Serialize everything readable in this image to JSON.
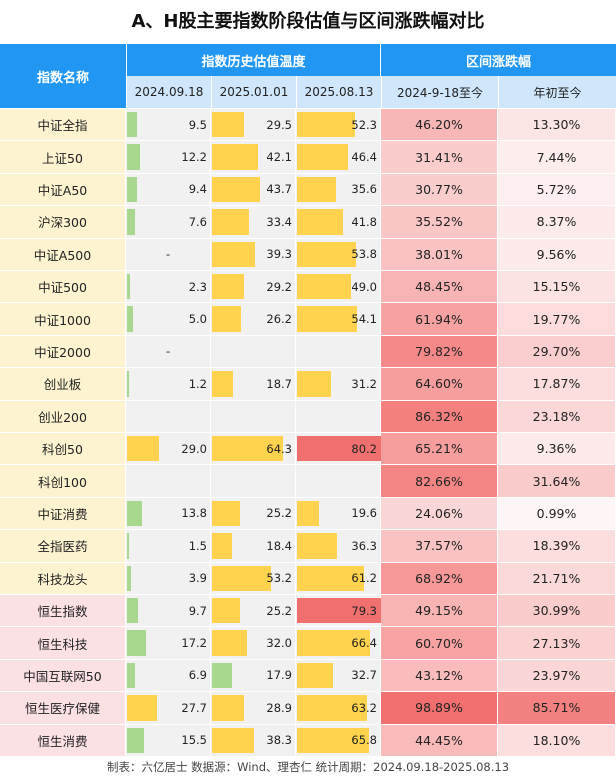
{
  "title": "A、H股主要指数阶段估值与区间涨跌幅对比",
  "header": {
    "name_col": "指数名称",
    "valuation_group": "指数历史估值温度",
    "change_group": "区间涨跌幅",
    "dates": [
      "2024.09.18",
      "2025.01.01",
      "2025.08.13"
    ],
    "change_cols": [
      "2024-9-18至今",
      "年初至今"
    ]
  },
  "colors": {
    "header_blue": "#2196f3",
    "subheader_blue": "#cfe6fb",
    "name_a_share": "#fdf3d0",
    "name_h_share": "#fbe0e4",
    "bar_green": "#a8d88e",
    "bar_yellow": "#ffd34d",
    "bar_red": "#f07070",
    "pct_low": "#fef7f7",
    "pct_high": "#f26d6d"
  },
  "chart_data": {
    "type": "table",
    "title": "A、H股主要指数阶段估值与区间涨跌幅对比",
    "valuation_scale": [
      0,
      100
    ],
    "rows": [
      {
        "name": "中证全指",
        "market": "A",
        "val": [
          9.5,
          29.5,
          52.3
        ],
        "chg": [
          "46.20%",
          "13.30%"
        ],
        "chg_num": [
          46.2,
          13.3
        ]
      },
      {
        "name": "上证50",
        "market": "A",
        "val": [
          12.2,
          42.1,
          46.4
        ],
        "chg": [
          "31.41%",
          "7.44%"
        ],
        "chg_num": [
          31.41,
          7.44
        ]
      },
      {
        "name": "中证A50",
        "market": "A",
        "val": [
          9.4,
          43.7,
          35.6
        ],
        "chg": [
          "30.77%",
          "5.72%"
        ],
        "chg_num": [
          30.77,
          5.72
        ]
      },
      {
        "name": "沪深300",
        "market": "A",
        "val": [
          7.6,
          33.4,
          41.8
        ],
        "chg": [
          "35.52%",
          "8.37%"
        ],
        "chg_num": [
          35.52,
          8.37
        ]
      },
      {
        "name": "中证A500",
        "market": "A",
        "val": [
          "-",
          39.3,
          53.8
        ],
        "chg": [
          "38.01%",
          "9.56%"
        ],
        "chg_num": [
          38.01,
          9.56
        ]
      },
      {
        "name": "中证500",
        "market": "A",
        "val": [
          2.3,
          29.2,
          49.0
        ],
        "chg": [
          "48.45%",
          "15.15%"
        ],
        "chg_num": [
          48.45,
          15.15
        ]
      },
      {
        "name": "中证1000",
        "market": "A",
        "val": [
          5.0,
          26.2,
          54.1
        ],
        "chg": [
          "61.94%",
          "19.77%"
        ],
        "chg_num": [
          61.94,
          19.77
        ]
      },
      {
        "name": "中证2000",
        "market": "A",
        "val": [
          "-",
          null,
          null
        ],
        "chg": [
          "79.82%",
          "29.70%"
        ],
        "chg_num": [
          79.82,
          29.7
        ]
      },
      {
        "name": "创业板",
        "market": "A",
        "val": [
          1.2,
          18.7,
          31.2
        ],
        "chg": [
          "64.60%",
          "17.87%"
        ],
        "chg_num": [
          64.6,
          17.87
        ]
      },
      {
        "name": "创业200",
        "market": "A",
        "val": [
          null,
          null,
          null
        ],
        "chg": [
          "86.32%",
          "23.18%"
        ],
        "chg_num": [
          86.32,
          23.18
        ]
      },
      {
        "name": "科创50",
        "market": "A",
        "val": [
          29.0,
          64.3,
          80.2
        ],
        "chg": [
          "65.21%",
          "9.36%"
        ],
        "chg_num": [
          65.21,
          9.36
        ]
      },
      {
        "name": "科创100",
        "market": "A",
        "val": [
          null,
          null,
          null
        ],
        "chg": [
          "82.66%",
          "31.64%"
        ],
        "chg_num": [
          82.66,
          31.64
        ]
      },
      {
        "name": "中证消费",
        "market": "A",
        "val": [
          13.8,
          25.2,
          19.6
        ],
        "chg": [
          "24.06%",
          "0.99%"
        ],
        "chg_num": [
          24.06,
          0.99
        ]
      },
      {
        "name": "全指医药",
        "market": "A",
        "val": [
          1.5,
          18.4,
          36.3
        ],
        "chg": [
          "37.57%",
          "18.39%"
        ],
        "chg_num": [
          37.57,
          18.39
        ]
      },
      {
        "name": "科技龙头",
        "market": "A",
        "val": [
          3.9,
          53.2,
          61.2
        ],
        "chg": [
          "68.92%",
          "21.71%"
        ],
        "chg_num": [
          68.92,
          21.71
        ]
      },
      {
        "name": "恒生指数",
        "market": "H",
        "val": [
          9.7,
          25.2,
          79.3
        ],
        "chg": [
          "49.15%",
          "30.99%"
        ],
        "chg_num": [
          49.15,
          30.99
        ]
      },
      {
        "name": "恒生科技",
        "market": "H",
        "val": [
          17.2,
          32.0,
          66.4
        ],
        "chg": [
          "60.70%",
          "27.13%"
        ],
        "chg_num": [
          60.7,
          27.13
        ]
      },
      {
        "name": "中国互联网50",
        "market": "H",
        "val": [
          6.9,
          17.9,
          32.7
        ],
        "chg": [
          "43.12%",
          "23.97%"
        ],
        "chg_num": [
          43.12,
          23.97
        ]
      },
      {
        "name": "恒生医疗保健",
        "market": "H",
        "val": [
          27.7,
          28.9,
          63.2
        ],
        "chg": [
          "98.89%",
          "85.71%"
        ],
        "chg_num": [
          98.89,
          85.71
        ]
      },
      {
        "name": "恒生消费",
        "market": "H",
        "val": [
          15.5,
          38.3,
          65.8
        ],
        "chg": [
          "44.45%",
          "18.10%"
        ],
        "chg_num": [
          44.45,
          18.1
        ]
      }
    ]
  },
  "footer": "制表：六亿居士 数据源：Wind、理杏仁 统计周期：2024.09.18-2025.08.13"
}
